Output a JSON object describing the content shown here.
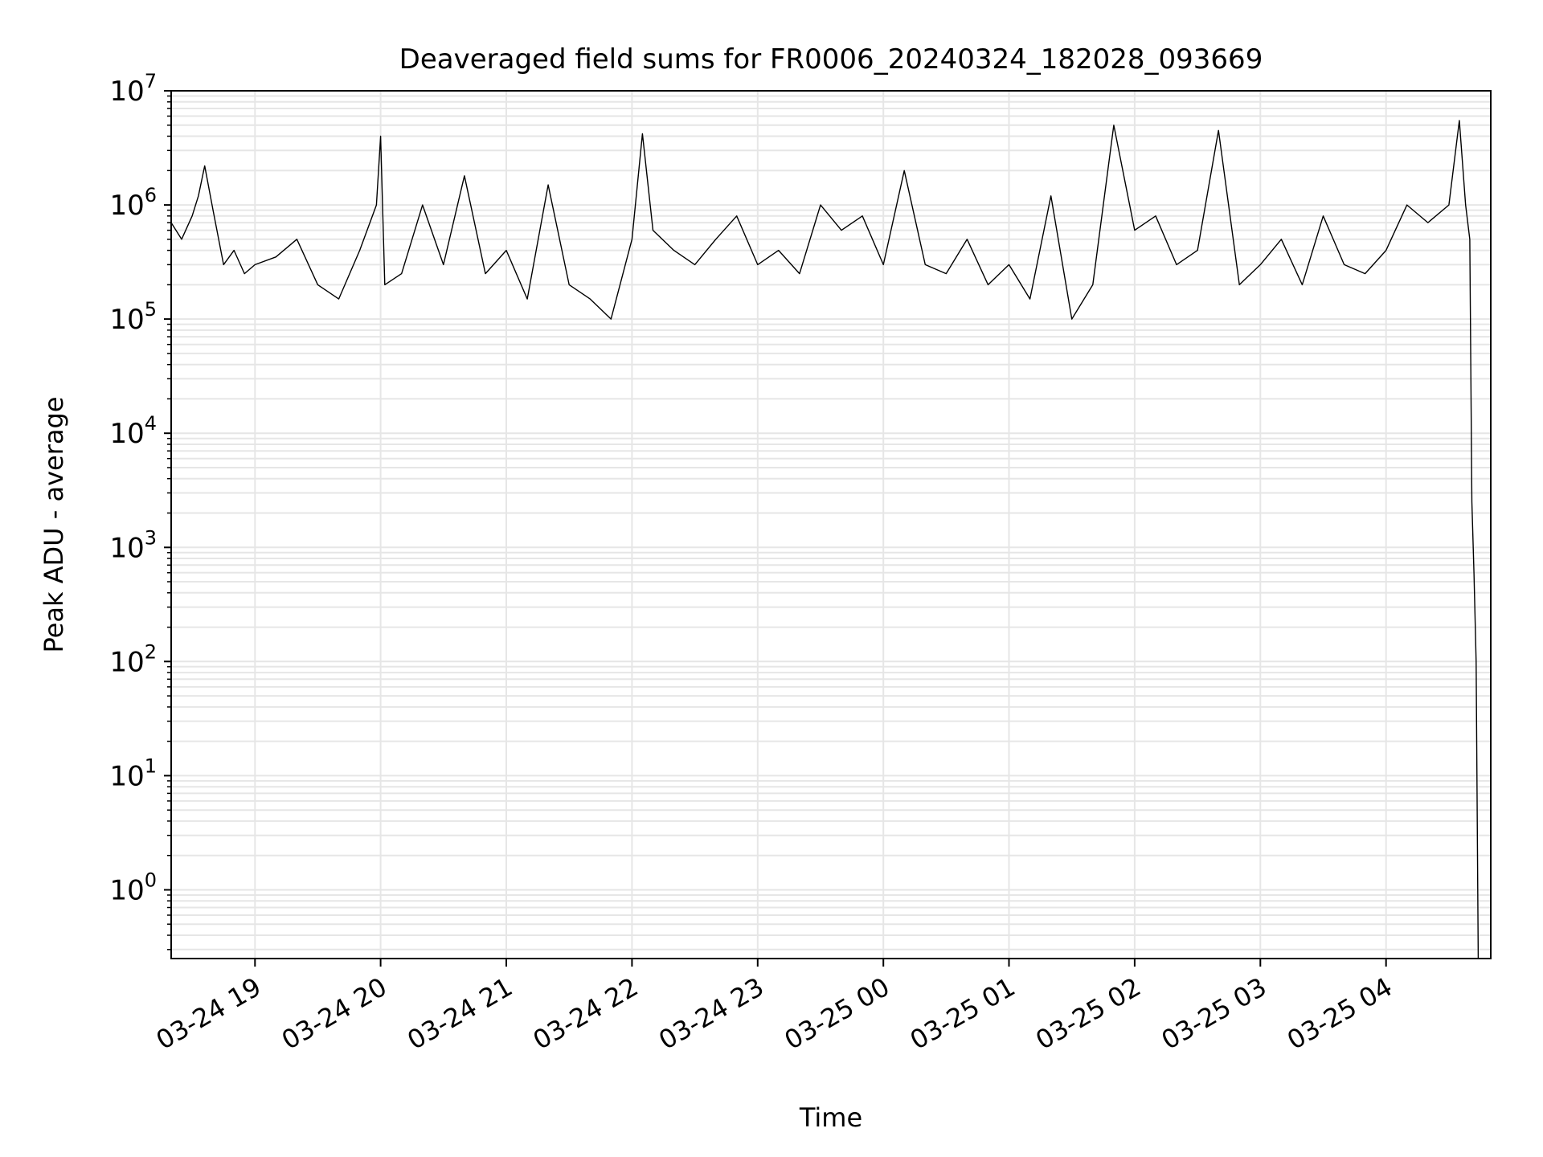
{
  "chart_data": {
    "type": "line",
    "title": "Deaveraged field sums for FR0006_20240324_182028_093669",
    "xlabel": "Time",
    "ylabel": "Peak ADU - average",
    "yscale": "log",
    "ylim": [
      0.25,
      10000000
    ],
    "xlim": [
      "2024-03-24 18:20",
      "2024-03-25 04:50"
    ],
    "grid": true,
    "grid_color": "#e6e6e6",
    "line_color": "#000000",
    "x_ticks": [
      {
        "t": "2024-03-24 19:00",
        "label": "03-24 19"
      },
      {
        "t": "2024-03-24 20:00",
        "label": "03-24 20"
      },
      {
        "t": "2024-03-24 21:00",
        "label": "03-24 21"
      },
      {
        "t": "2024-03-24 22:00",
        "label": "03-24 22"
      },
      {
        "t": "2024-03-24 23:00",
        "label": "03-24 23"
      },
      {
        "t": "2024-03-25 00:00",
        "label": "03-25 00"
      },
      {
        "t": "2024-03-25 01:00",
        "label": "03-25 01"
      },
      {
        "t": "2024-03-25 02:00",
        "label": "03-25 02"
      },
      {
        "t": "2024-03-25 03:00",
        "label": "03-25 03"
      },
      {
        "t": "2024-03-25 04:00",
        "label": "03-25 04"
      }
    ],
    "y_ticks": [
      {
        "value": 1,
        "base": "10",
        "exp": "0"
      },
      {
        "value": 10,
        "base": "10",
        "exp": "1"
      },
      {
        "value": 100,
        "base": "10",
        "exp": "2"
      },
      {
        "value": 1000,
        "base": "10",
        "exp": "3"
      },
      {
        "value": 10000,
        "base": "10",
        "exp": "4"
      },
      {
        "value": 100000,
        "base": "10",
        "exp": "5"
      },
      {
        "value": 1000000,
        "base": "10",
        "exp": "6"
      },
      {
        "value": 10000000,
        "base": "10",
        "exp": "7"
      }
    ],
    "series": [
      {
        "x": [
          "2024-03-24 18:20",
          "2024-03-24 18:25",
          "2024-03-24 18:30",
          "2024-03-24 18:33",
          "2024-03-24 18:36",
          "2024-03-24 18:40",
          "2024-03-24 18:45",
          "2024-03-24 18:50",
          "2024-03-24 18:55",
          "2024-03-24 19:00",
          "2024-03-24 19:10",
          "2024-03-24 19:20",
          "2024-03-24 19:30",
          "2024-03-24 19:40",
          "2024-03-24 19:50",
          "2024-03-24 19:58",
          "2024-03-24 20:00",
          "2024-03-24 20:02",
          "2024-03-24 20:10",
          "2024-03-24 20:20",
          "2024-03-24 20:30",
          "2024-03-24 20:40",
          "2024-03-24 20:50",
          "2024-03-24 21:00",
          "2024-03-24 21:10",
          "2024-03-24 21:20",
          "2024-03-24 21:30",
          "2024-03-24 21:40",
          "2024-03-24 21:50",
          "2024-03-24 22:00",
          "2024-03-24 22:05",
          "2024-03-24 22:10",
          "2024-03-24 22:20",
          "2024-03-24 22:30",
          "2024-03-24 22:40",
          "2024-03-24 22:50",
          "2024-03-24 23:00",
          "2024-03-24 23:10",
          "2024-03-24 23:20",
          "2024-03-24 23:30",
          "2024-03-24 23:40",
          "2024-03-24 23:50",
          "2024-03-25 00:00",
          "2024-03-25 00:10",
          "2024-03-25 00:20",
          "2024-03-25 00:30",
          "2024-03-25 00:40",
          "2024-03-25 00:50",
          "2024-03-25 01:00",
          "2024-03-25 01:10",
          "2024-03-25 01:20",
          "2024-03-25 01:30",
          "2024-03-25 01:40",
          "2024-03-25 01:50",
          "2024-03-25 02:00",
          "2024-03-25 02:10",
          "2024-03-25 02:20",
          "2024-03-25 02:30",
          "2024-03-25 02:40",
          "2024-03-25 02:50",
          "2024-03-25 03:00",
          "2024-03-25 03:10",
          "2024-03-25 03:20",
          "2024-03-25 03:30",
          "2024-03-25 03:40",
          "2024-03-25 03:50",
          "2024-03-25 04:00",
          "2024-03-25 04:10",
          "2024-03-25 04:20",
          "2024-03-25 04:30",
          "2024-03-25 04:35",
          "2024-03-25 04:38",
          "2024-03-25 04:40",
          "2024-03-25 04:41",
          "2024-03-25 04:42",
          "2024-03-25 04:43",
          "2024-03-25 04:44"
        ],
        "y": [
          700000,
          500000,
          800000,
          1200000,
          2200000,
          900000,
          300000,
          400000,
          250000,
          300000,
          350000,
          500000,
          200000,
          150000,
          400000,
          1000000,
          4000000,
          200000,
          250000,
          1000000,
          300000,
          1800000,
          250000,
          400000,
          150000,
          1500000,
          200000,
          150000,
          100000,
          500000,
          4200000,
          600000,
          400000,
          300000,
          500000,
          800000,
          300000,
          400000,
          250000,
          1000000,
          600000,
          800000,
          300000,
          2000000,
          300000,
          250000,
          500000,
          200000,
          300000,
          150000,
          1200000,
          100000,
          200000,
          5000000,
          600000,
          800000,
          300000,
          400000,
          4500000,
          200000,
          300000,
          500000,
          200000,
          800000,
          300000,
          250000,
          400000,
          1000000,
          700000,
          1000000,
          5500000,
          1000000,
          500000,
          2500,
          600,
          100,
          0.25
        ]
      }
    ]
  }
}
